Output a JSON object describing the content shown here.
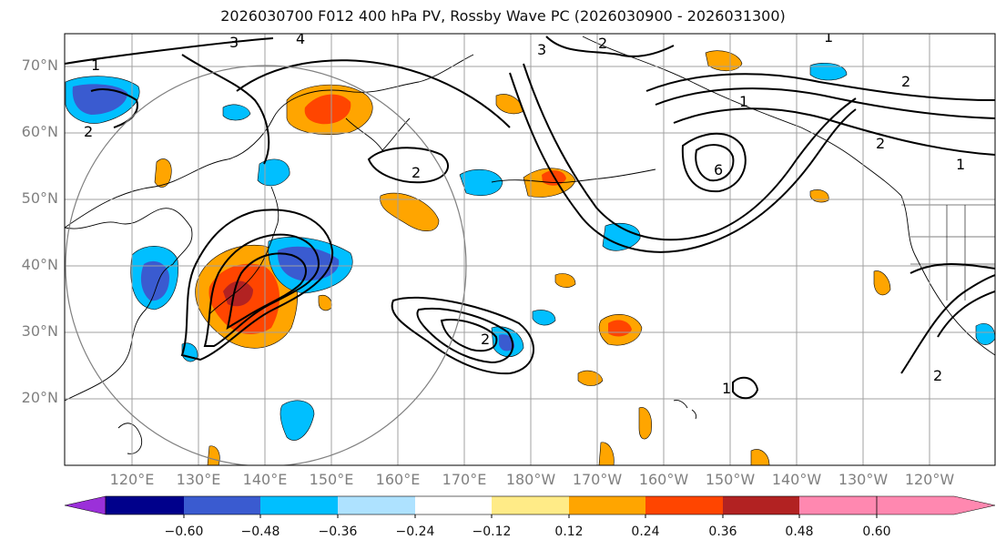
{
  "title": "2026030700 F012 400 hPa PV, Rossby Wave PC (2026030900 - 2026031300)",
  "map": {
    "latitude_labels": [
      "70°N",
      "60°N",
      "50°N",
      "40°N",
      "30°N",
      "20°N"
    ],
    "longitude_labels": [
      "120°E",
      "130°E",
      "140°E",
      "150°E",
      "160°E",
      "170°E",
      "180°W",
      "170°W",
      "160°W",
      "150°W",
      "140°W",
      "130°W",
      "120°W"
    ],
    "contour_labels": [
      "1",
      "1",
      "1",
      "1",
      "1",
      "2",
      "2",
      "2",
      "2",
      "2",
      "2",
      "2",
      "3",
      "3",
      "4",
      "6"
    ]
  },
  "colorbar": {
    "colors": [
      "#9b30d9",
      "#00008b",
      "#3a5bd0",
      "#00bfff",
      "#aee2ff",
      "#ffffff",
      "#ffeb87",
      "#ffa500",
      "#ff4500",
      "#b22222",
      "#ff88b0"
    ],
    "tick_labels": [
      "−0.60",
      "−0.48",
      "−0.36",
      "−0.24",
      "−0.12",
      "0.12",
      "0.24",
      "0.36",
      "0.48",
      "0.60"
    ]
  }
}
